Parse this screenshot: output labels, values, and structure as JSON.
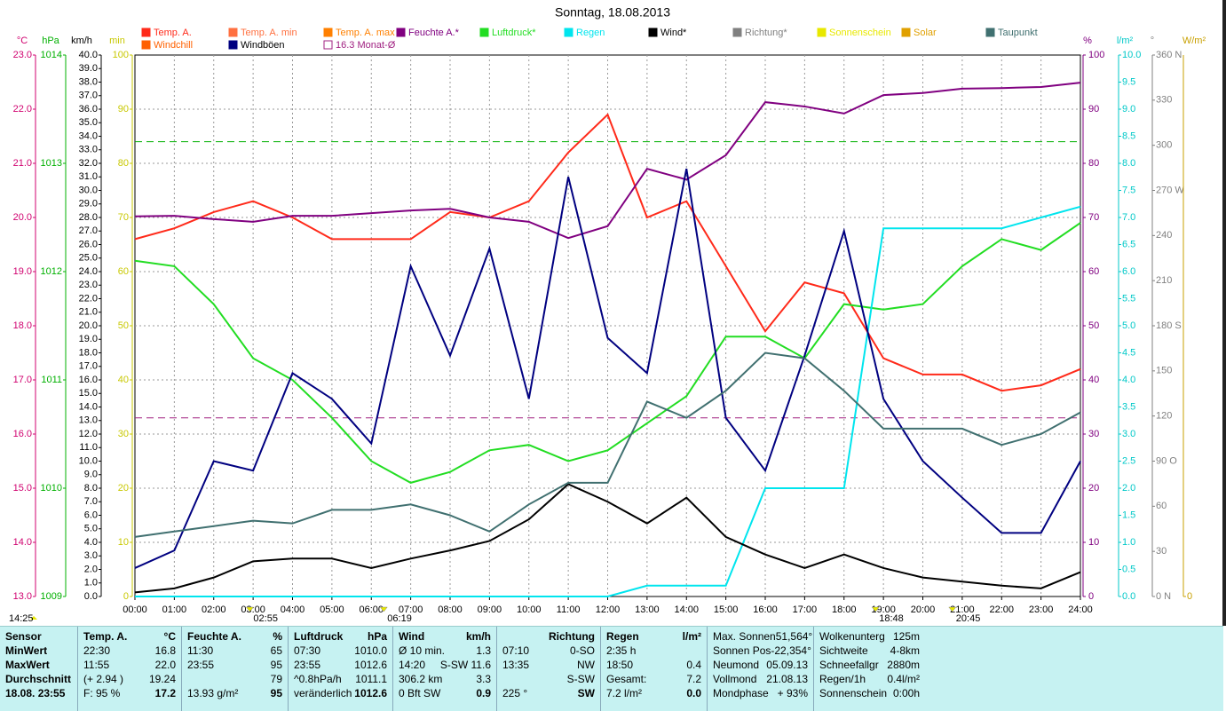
{
  "chart_data": {
    "type": "line",
    "title": "Sonntag, 18.08.2013",
    "x": [
      0,
      1,
      2,
      3,
      4,
      5,
      6,
      7,
      8,
      9,
      10,
      11,
      12,
      13,
      14,
      15,
      16,
      17,
      18,
      19,
      20,
      21,
      22,
      23,
      24
    ],
    "xlim": [
      0,
      24
    ],
    "xticks": [
      {
        "value": 0,
        "label": "00:00"
      },
      {
        "value": 1,
        "label": "01:00"
      },
      {
        "value": 2,
        "label": "02:00"
      },
      {
        "value": 3,
        "label": "03:00"
      },
      {
        "value": 4,
        "label": "04:00"
      },
      {
        "value": 5,
        "label": "05:00"
      },
      {
        "value": 6,
        "label": "06:00"
      },
      {
        "value": 7,
        "label": "07:00"
      },
      {
        "value": 8,
        "label": "08:00"
      },
      {
        "value": 9,
        "label": "09:00"
      },
      {
        "value": 10,
        "label": "10:00"
      },
      {
        "value": 11,
        "label": "11:00"
      },
      {
        "value": 12,
        "label": "12:00"
      },
      {
        "value": 13,
        "label": "13:00"
      },
      {
        "value": 14,
        "label": "14:00"
      },
      {
        "value": 15,
        "label": "15:00"
      },
      {
        "value": 16,
        "label": "16:00"
      },
      {
        "value": 17,
        "label": "17:00"
      },
      {
        "value": 18,
        "label": "18:00"
      },
      {
        "value": 19,
        "label": "19:00"
      },
      {
        "value": 20,
        "label": "20:00"
      },
      {
        "value": 21,
        "label": "21:00"
      },
      {
        "value": 22,
        "label": "22:00"
      },
      {
        "value": 23,
        "label": "23:00"
      },
      {
        "value": 24,
        "label": "24:00"
      }
    ],
    "grid": true,
    "axes": [
      {
        "unit": "°C",
        "color": "#d0006f",
        "lim": [
          13,
          23
        ],
        "ticks": [
          {
            "value": 13,
            "label": "13.0"
          },
          {
            "value": 14,
            "label": "14.0"
          },
          {
            "value": 15,
            "label": "15.0"
          },
          {
            "value": 16,
            "label": "16.0"
          },
          {
            "value": 17,
            "label": "17.0"
          },
          {
            "value": 18,
            "label": "18.0"
          },
          {
            "value": 19,
            "label": "19.0"
          },
          {
            "value": 20,
            "label": "20.0"
          },
          {
            "value": 21,
            "label": "21.0"
          },
          {
            "value": 22,
            "label": "22.0"
          },
          {
            "value": 23,
            "label": "23.0"
          }
        ]
      },
      {
        "unit": "hPa",
        "color": "#00b000",
        "lim": [
          1009,
          1014
        ],
        "ticks": [
          1009,
          1010,
          1011,
          1012,
          1013,
          1014
        ]
      },
      {
        "unit": "km/h",
        "color": "#000000",
        "lim": [
          0,
          40
        ],
        "ticks": [
          {
            "value": 0,
            "label": "0.0"
          },
          {
            "value": 1,
            "label": "1.0"
          },
          {
            "value": 2,
            "label": "2.0"
          },
          {
            "value": 3,
            "label": "3.0"
          },
          {
            "value": 4,
            "label": "4.0"
          },
          {
            "value": 5,
            "label": "5.0"
          },
          {
            "value": 6,
            "label": "6.0"
          },
          {
            "value": 7,
            "label": "7.0"
          },
          {
            "value": 8,
            "label": "8.0"
          },
          {
            "value": 9,
            "label": "9.0"
          },
          {
            "value": 10,
            "label": "10.0"
          },
          {
            "value": 11,
            "label": "11.0"
          },
          {
            "value": 12,
            "label": "12.0"
          },
          {
            "value": 13,
            "label": "13.0"
          },
          {
            "value": 14,
            "label": "14.0"
          },
          {
            "value": 15,
            "label": "15.0"
          },
          {
            "value": 16,
            "label": "16.0"
          },
          {
            "value": 17,
            "label": "17.0"
          },
          {
            "value": 18,
            "label": "18.0"
          },
          {
            "value": 19,
            "label": "19.0"
          },
          {
            "value": 20,
            "label": "20.0"
          },
          {
            "value": 21,
            "label": "21.0"
          },
          {
            "value": 22,
            "label": "22.0"
          },
          {
            "value": 23,
            "label": "23.0"
          },
          {
            "value": 24,
            "label": "24.0"
          },
          {
            "value": 25,
            "label": "25.0"
          },
          {
            "value": 26,
            "label": "26.0"
          },
          {
            "value": 27,
            "label": "27.0"
          },
          {
            "value": 28,
            "label": "28.0"
          },
          {
            "value": 29,
            "label": "29.0"
          },
          {
            "value": 30,
            "label": "30.0"
          },
          {
            "value": 31,
            "label": "31.0"
          },
          {
            "value": 32,
            "label": "32.0"
          },
          {
            "value": 33,
            "label": "33.0"
          },
          {
            "value": 34,
            "label": "34.0"
          },
          {
            "value": 35,
            "label": "35.0"
          },
          {
            "value": 36,
            "label": "36.0"
          },
          {
            "value": 37,
            "label": "37.0"
          },
          {
            "value": 38,
            "label": "38.0"
          },
          {
            "value": 39,
            "label": "39.0"
          },
          {
            "value": 40,
            "label": "40.0"
          }
        ]
      },
      {
        "unit": "min",
        "color": "#c8c800",
        "lim": [
          0,
          100
        ],
        "ticks": [
          0,
          10,
          20,
          30,
          40,
          50,
          60,
          70,
          80,
          90,
          100
        ]
      },
      {
        "unit": "%",
        "color": "#800080",
        "lim": [
          0,
          100
        ],
        "ticks": [
          0,
          10,
          20,
          30,
          40,
          50,
          60,
          70,
          80,
          90,
          100
        ]
      },
      {
        "unit": "l/m²",
        "color": "#00c8c8",
        "lim": [
          0,
          10
        ],
        "ticks": [
          {
            "value": 0,
            "label": "0.0"
          },
          {
            "value": 0.5,
            "label": "0.5"
          },
          {
            "value": 1,
            "label": "1.0"
          },
          {
            "value": 1.5,
            "label": "1.5"
          },
          {
            "value": 2,
            "label": "2.0"
          },
          {
            "value": 2.5,
            "label": "2.5"
          },
          {
            "value": 3,
            "label": "3.0"
          },
          {
            "value": 3.5,
            "label": "3.5"
          },
          {
            "value": 4,
            "label": "4.0"
          },
          {
            "value": 4.5,
            "label": "4.5"
          },
          {
            "value": 5,
            "label": "5.0"
          },
          {
            "value": 5.5,
            "label": "5.5"
          },
          {
            "value": 6,
            "label": "6.0"
          },
          {
            "value": 6.5,
            "label": "6.5"
          },
          {
            "value": 7,
            "label": "7.0"
          },
          {
            "value": 7.5,
            "label": "7.5"
          },
          {
            "value": 8,
            "label": "8.0"
          },
          {
            "value": 8.5,
            "label": "8.5"
          },
          {
            "value": 9,
            "label": "9.0"
          },
          {
            "value": 9.5,
            "label": "9.5"
          },
          {
            "value": 10,
            "label": "10.0"
          }
        ]
      },
      {
        "unit": "°",
        "color": "#808080",
        "lim": [
          0,
          360
        ],
        "ticks": [
          {
            "value": 0,
            "label": "0 N"
          },
          30,
          60,
          {
            "value": 90,
            "label": "90 O"
          },
          120,
          150,
          {
            "value": 180,
            "label": "180 S"
          },
          210,
          240,
          {
            "value": 270,
            "label": "270 W"
          },
          300,
          330,
          {
            "value": 360,
            "label": "360 N"
          }
        ]
      },
      {
        "unit": "W/m²",
        "color": "#c8a000",
        "lim": [
          0,
          1000
        ],
        "ticks": [
          0
        ]
      }
    ],
    "series": [
      {
        "name": "Temp. A.",
        "color": "#ff2a1a",
        "axis": 0,
        "values": [
          19.6,
          19.8,
          20.1,
          20.3,
          20.0,
          19.6,
          19.6,
          19.6,
          20.1,
          20.0,
          20.3,
          21.2,
          21.9,
          20.0,
          20.3,
          19.1,
          17.9,
          18.8,
          18.6,
          17.4,
          17.1,
          17.1,
          16.8,
          16.9,
          17.2
        ]
      },
      {
        "name": "Feuchte A.*",
        "color": "#800080",
        "axis": 4,
        "values": [
          70.2,
          70.3,
          69.7,
          69.2,
          70.3,
          70.3,
          70.8,
          71.3,
          71.6,
          70.0,
          69.2,
          66.2,
          68.4,
          79.0,
          77.0,
          81.5,
          91.3,
          90.5,
          89.2,
          92.6,
          93.0,
          93.8,
          93.9,
          94.1,
          94.9
        ]
      },
      {
        "name": "Luftdruck*",
        "color": "#22dd22",
        "axis": 1,
        "values": [
          1012.1,
          1012.05,
          1011.7,
          1011.2,
          1011.0,
          1010.65,
          1010.25,
          1010.05,
          1010.15,
          1010.35,
          1010.4,
          1010.25,
          1010.35,
          1010.6,
          1010.85,
          1011.4,
          1011.4,
          1011.2,
          1011.7,
          1011.65,
          1011.7,
          1012.05,
          1012.3,
          1012.2,
          1012.45
        ]
      },
      {
        "name": "Regen",
        "color": "#00e5ee",
        "axis": 5,
        "values": [
          0,
          0,
          0,
          0,
          0,
          0,
          0,
          0,
          0,
          0,
          0,
          0,
          0,
          0.2,
          0.2,
          0.2,
          2.0,
          2.0,
          2.0,
          6.8,
          6.8,
          6.8,
          6.8,
          7.0,
          7.2
        ]
      },
      {
        "name": "Wind*",
        "color": "#000000",
        "axis": 2,
        "values": [
          0.3,
          0.6,
          1.4,
          2.6,
          2.8,
          2.8,
          2.1,
          2.8,
          3.4,
          4.1,
          5.7,
          8.3,
          7.0,
          5.4,
          7.3,
          4.4,
          3.1,
          2.1,
          3.1,
          2.1,
          1.4,
          1.1,
          0.8,
          0.6,
          1.8
        ]
      },
      {
        "name": "Windböen",
        "color": "#000080",
        "axis": 2,
        "values": [
          2.1,
          3.4,
          10.0,
          9.3,
          16.5,
          14.6,
          11.3,
          24.4,
          17.8,
          25.7,
          14.6,
          31.0,
          19.1,
          16.5,
          31.6,
          13.2,
          9.3,
          17.8,
          27.0,
          14.6,
          10.0,
          7.3,
          4.7,
          4.7,
          10.0
        ]
      },
      {
        "name": "Taupunkt",
        "color": "#407070",
        "axis": 0,
        "values": [
          14.1,
          14.2,
          14.3,
          14.4,
          14.35,
          14.6,
          14.6,
          14.7,
          14.5,
          14.2,
          14.7,
          15.1,
          15.1,
          16.6,
          16.3,
          16.8,
          17.5,
          17.4,
          16.8,
          16.1,
          16.1,
          16.1,
          15.8,
          16.0,
          16.4
        ]
      }
    ],
    "legend_only": [
      {
        "name": "Temp. A. min",
        "color": "#ff7040"
      },
      {
        "name": "Temp. A. max",
        "color": "#ff8000"
      },
      {
        "name": "Windchill",
        "color": "#ff6000"
      },
      {
        "name": "Richtung*",
        "color": "#808080"
      },
      {
        "name": "Sonnenschein",
        "color": "#e8e800"
      },
      {
        "name": "Solar",
        "color": "#e0a000"
      }
    ],
    "hlines": [
      {
        "name": "16.3 Monat-Ø",
        "value": 16.3,
        "axis": 0,
        "color": "#a02080"
      },
      {
        "value": 1013.2,
        "axis": 1,
        "color": "#00b000"
      }
    ],
    "time_marker_left": "14:25",
    "time_markers": [
      "02:55",
      "06:19",
      "18:48",
      "20:45"
    ]
  },
  "table": {
    "panels": [
      {
        "header": [
          "Sensor"
        ],
        "rows": [
          [
            "MinWert"
          ],
          [
            "MaxWert"
          ],
          [
            "Durchschnitt"
          ],
          [
            "18.08. 23:55"
          ]
        ]
      },
      {
        "header": [
          "Temp. A.",
          "°C"
        ],
        "rows": [
          [
            "22:30",
            "16.8"
          ],
          [
            "11:55",
            "22.0"
          ],
          [
            "(+ 2.94 )",
            "19.24"
          ],
          [
            "F: 95 %",
            "17.2"
          ]
        ]
      },
      {
        "header": [
          "Feuchte A.",
          "%"
        ],
        "rows": [
          [
            "11:30",
            "65"
          ],
          [
            "23:55",
            "95"
          ],
          [
            "79"
          ],
          [
            "13.93 g/m²",
            "95"
          ]
        ]
      },
      {
        "header": [
          "Luftdruck",
          "hPa"
        ],
        "rows": [
          [
            "07:30",
            "1010.0"
          ],
          [
            "23:55",
            "1012.6"
          ],
          [
            "^0.8hPa/h",
            "1011.1"
          ],
          [
            "veränderlich",
            "1012.6"
          ]
        ]
      },
      {
        "header": [
          "Wind",
          "km/h"
        ],
        "rows": [
          [
            "Ø 10 min.",
            "1.3"
          ],
          [
            "14:20",
            "S-SW 11.6"
          ],
          [
            "306.2 km",
            "3.3"
          ],
          [
            "0 Bft SW",
            "0.9"
          ]
        ]
      },
      {
        "header": [
          "Richtung"
        ],
        "rows": [
          [
            "07:10",
            "0-SO"
          ],
          [
            "13:35",
            "NW"
          ],
          [
            "S-SW"
          ],
          [
            "225 °",
            "SW"
          ]
        ]
      },
      {
        "header": [
          "Regen",
          "l/m²"
        ],
        "rows": [
          [
            "2:35 h"
          ],
          [
            "18:50",
            "0.4"
          ],
          [
            "Gesamt:",
            "7.2"
          ],
          [
            "7.2 l/m²",
            "0.0"
          ]
        ]
      },
      {
        "rows": [
          [
            "Max. Sonnen",
            "51,564°"
          ],
          [
            "Sonnen Pos",
            "-22,354°"
          ],
          [
            "Neumond",
            "05.09.13"
          ],
          [
            "Vollmond",
            "21.08.13"
          ],
          [
            "Mondphase",
            "+ 93%"
          ]
        ]
      },
      {
        "rows": [
          [
            "Wolkenunterg",
            "125m"
          ],
          [
            "Sichtweite",
            "4-8km"
          ],
          [
            "Schneefallgr",
            "2880m"
          ],
          [
            "Regen/1h",
            "0.4l/m²"
          ],
          [
            "Sonnenschein",
            "0:00h"
          ]
        ]
      }
    ]
  }
}
